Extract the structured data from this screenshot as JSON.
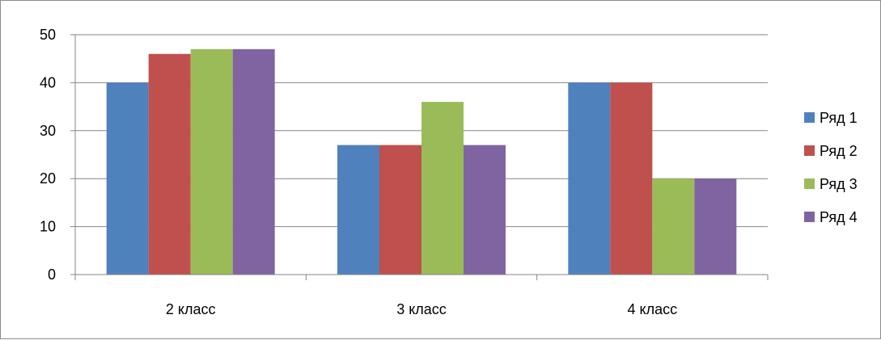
{
  "chart_data": {
    "type": "bar",
    "title": "",
    "xlabel": "",
    "ylabel": "",
    "categories": [
      "2 класс",
      "3 класс",
      "4 класс"
    ],
    "series": [
      {
        "name": "Ряд 1",
        "color": "#4f81bd",
        "values": [
          40,
          27,
          40
        ]
      },
      {
        "name": "Ряд 2",
        "color": "#c0504d",
        "values": [
          46,
          27,
          40
        ]
      },
      {
        "name": "Ряд 3",
        "color": "#9bbb59",
        "values": [
          47,
          36,
          20
        ]
      },
      {
        "name": "Ряд 4",
        "color": "#8064a2",
        "values": [
          47,
          27,
          20
        ]
      }
    ],
    "ylim": [
      0,
      50
    ],
    "yticks": [
      "0",
      "10",
      "20",
      "30",
      "40",
      "50"
    ],
    "grid": true,
    "legend": "right"
  }
}
